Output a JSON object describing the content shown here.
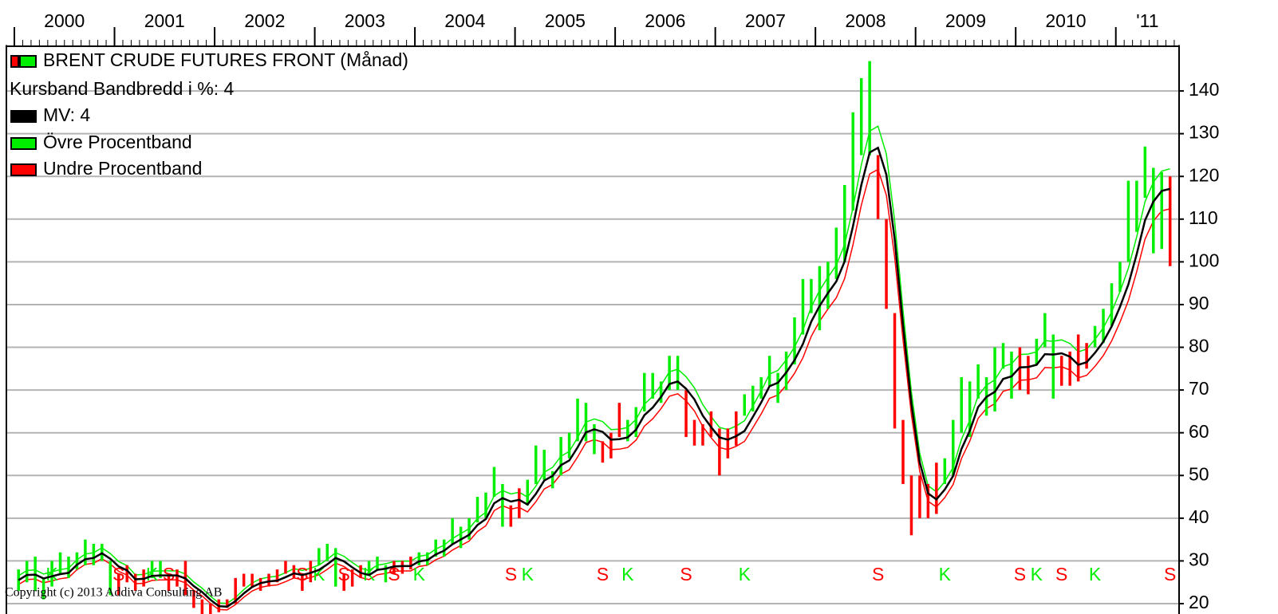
{
  "chart_data": {
    "type": "ohlc",
    "legend": [
      "BRENT CRUDE FUTURES FRONT (Månad)",
      "Kursband  Bandbredd i %: 4",
      "MV: 4",
      "Övre Procentband",
      "Undre Procentband"
    ],
    "copyright": "Copyright (c) 2013 Addiva Consulting AB",
    "xticks": [
      "2000",
      "2001",
      "2002",
      "2003",
      "2004",
      "2005",
      "2006",
      "2007",
      "2008",
      "2009",
      "2010",
      "'11"
    ],
    "up_color": "#00ee00",
    "down_color": "#ff0000",
    "high": [
      28,
      30,
      31,
      26,
      30,
      32,
      31,
      32,
      35,
      34,
      34,
      30,
      27,
      29,
      27,
      28,
      30,
      30,
      27,
      28,
      30,
      23,
      21,
      20,
      21,
      21,
      26,
      27,
      27,
      26,
      27,
      28,
      30,
      29,
      27,
      30,
      33,
      34,
      33,
      27,
      28,
      29,
      30,
      31,
      29,
      30,
      30,
      31,
      32,
      32,
      35,
      35,
      40,
      38,
      40,
      45,
      46,
      52,
      48,
      43,
      47,
      49,
      57,
      56,
      51,
      59,
      60,
      68,
      67,
      62,
      58,
      60,
      67,
      63,
      66,
      74,
      74,
      72,
      78,
      78,
      70,
      63,
      62,
      65,
      61,
      61,
      65,
      69,
      71,
      73,
      78,
      74,
      79,
      87,
      96,
      96,
      99,
      100,
      108,
      118,
      135,
      143,
      147,
      125,
      110,
      88,
      63,
      50,
      50,
      48,
      53,
      54,
      63,
      73,
      72,
      76,
      73,
      80,
      81,
      79,
      80,
      78,
      82,
      88,
      83,
      78,
      79,
      83,
      81,
      85,
      89,
      95,
      100,
      119,
      119,
      127,
      122,
      121,
      120
    ],
    "low": [
      23,
      25,
      23,
      21,
      24,
      27,
      26,
      28,
      29,
      29,
      30,
      22,
      22,
      25,
      23,
      24,
      26,
      26,
      23,
      24,
      22,
      19,
      17,
      17,
      18,
      19,
      20,
      24,
      24,
      23,
      24,
      25,
      27,
      26,
      23,
      25,
      29,
      30,
      24,
      23,
      24,
      26,
      27,
      28,
      25,
      27,
      27,
      28,
      29,
      29,
      31,
      31,
      34,
      33,
      35,
      39,
      40,
      45,
      38,
      38,
      40,
      43,
      48,
      49,
      47,
      50,
      54,
      58,
      58,
      55,
      53,
      54,
      59,
      58,
      59,
      65,
      68,
      67,
      70,
      70,
      59,
      57,
      57,
      59,
      50,
      54,
      57,
      64,
      65,
      68,
      71,
      67,
      70,
      76,
      83,
      88,
      84,
      89,
      96,
      100,
      112,
      125,
      125,
      110,
      89,
      61,
      48,
      36,
      40,
      40,
      41,
      48,
      50,
      60,
      59,
      68,
      64,
      65,
      75,
      68,
      70,
      69,
      76,
      80,
      68,
      71,
      71,
      72,
      75,
      80,
      81,
      85,
      93,
      100,
      107,
      115,
      102,
      103,
      99
    ],
    "ma": {
      "color": "#000000",
      "values": [
        25.5,
        26.7,
        26.8,
        25.9,
        26.4,
        26.9,
        27.2,
        29.1,
        30.4,
        30.7,
        31.8,
        30.5,
        28.7,
        27.8,
        25.7,
        25.8,
        26.5,
        26.6,
        26.6,
        26.6,
        25.9,
        24.1,
        22.7,
        20.9,
        19.4,
        19.3,
        20.6,
        22.4,
        23.9,
        24.8,
        25.2,
        25.4,
        26.2,
        27.1,
        26.7,
        27.2,
        27.9,
        29.2,
        30.7,
        29.9,
        28.5,
        27.2,
        26.7,
        27.9,
        28.2,
        28.7,
        28.8,
        28.8,
        29.9,
        30.2,
        31.5,
        32.4,
        33.9,
        35.0,
        36.1,
        38.4,
        39.8,
        43.5,
        44.7,
        43.9,
        44.3,
        43.2,
        45.7,
        48.8,
        49.9,
        52.4,
        53.5,
        56.6,
        60.1,
        60.8,
        60.2,
        58.4,
        58.5,
        58.9,
        60.7,
        64.1,
        65.9,
        68.4,
        71.4,
        72.0,
        70.3,
        67.8,
        64.0,
        61.3,
        58.9,
        58.4,
        59.2,
        60.4,
        63.7,
        67.1,
        70.9,
        71.7,
        74.1,
        77.0,
        80.8,
        86.0,
        89.7,
        92.7,
        95.4,
        100.1,
        108.3,
        118.0,
        125.6,
        126.7,
        120.4,
        105.3,
        85.1,
        66.8,
        53.1,
        45.8,
        44.4,
        46.7,
        49.9,
        56.2,
        60.5,
        66.0,
        68.4,
        69.6,
        72.6,
        73.2,
        75.3,
        75.4,
        75.9,
        78.4,
        78.3,
        78.6,
        77.8,
        75.9,
        76.5,
        78.7,
        81.3,
        84.9,
        89.5,
        94.7,
        101.8,
        109.7,
        114.1,
        116.6,
        117.1
      ]
    },
    "band_percent": 4,
    "upper_color": "#00ee00",
    "lower_color": "#ff0000",
    "signals": [
      {
        "index": 4,
        "label": "K"
      },
      {
        "index": 12,
        "label": "S"
      },
      {
        "index": 16,
        "label": "K"
      },
      {
        "index": 18,
        "label": "S"
      },
      {
        "index": 34,
        "label": "S"
      },
      {
        "index": 36,
        "label": "K"
      },
      {
        "index": 39,
        "label": "S"
      },
      {
        "index": 42,
        "label": "K"
      },
      {
        "index": 45,
        "label": "S"
      },
      {
        "index": 48,
        "label": "K"
      },
      {
        "index": 59,
        "label": "S"
      },
      {
        "index": 61,
        "label": "K"
      },
      {
        "index": 70,
        "label": "S"
      },
      {
        "index": 73,
        "label": "K"
      },
      {
        "index": 80,
        "label": "S"
      },
      {
        "index": 87,
        "label": "K"
      },
      {
        "index": 103,
        "label": "S"
      },
      {
        "index": 111,
        "label": "K"
      },
      {
        "index": 120,
        "label": "S"
      },
      {
        "index": 122,
        "label": "K"
      },
      {
        "index": 125,
        "label": "S"
      },
      {
        "index": 129,
        "label": "K"
      },
      {
        "index": 138,
        "label": "S"
      }
    ],
    "ylim": [
      20,
      150
    ],
    "yticks": [
      20,
      30,
      40,
      50,
      60,
      70,
      80,
      90,
      100,
      110,
      120,
      130,
      140
    ],
    "grid": true
  }
}
